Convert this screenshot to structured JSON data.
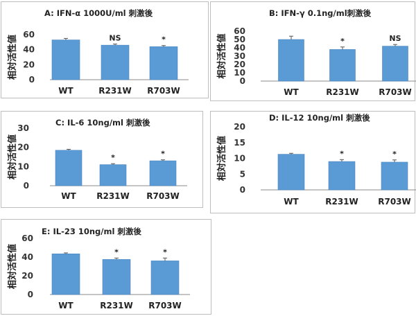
{
  "colors": {
    "bar": "#5b9bd5",
    "bar_edge": "#4a86c0",
    "axis": "#888888",
    "text": "#222222"
  },
  "chart_data": [
    {
      "type": "bar",
      "title": "A:   IFN-α 1000U/ml 刺激後",
      "ylabel": "相対活性値",
      "categories": [
        "WT",
        "R231W",
        "R703W"
      ],
      "values": [
        53,
        46,
        44
      ],
      "errors": [
        2,
        1.5,
        1.5
      ],
      "annotations": [
        "",
        "NS",
        "*"
      ],
      "yticks": [
        0,
        20,
        40,
        60
      ],
      "ylim": [
        0,
        60
      ]
    },
    {
      "type": "bar",
      "title": "B:    IFN-γ 0.1ng/ml刺激後",
      "ylabel": "相対活性値",
      "categories": [
        "WT",
        "R231W",
        "R703W"
      ],
      "values": [
        50,
        38,
        42
      ],
      "errors": [
        4,
        3,
        2
      ],
      "annotations": [
        "",
        "*",
        "NS"
      ],
      "yticks": [
        0,
        10,
        20,
        30,
        40,
        50,
        60
      ],
      "ylim": [
        0,
        60
      ]
    },
    {
      "type": "bar",
      "title": "C:    IL-6 10ng/ml 刺激後",
      "ylabel": "相対活性値",
      "categories": [
        "WT",
        "R231W",
        "R703W"
      ],
      "values": [
        18.5,
        11,
        13
      ],
      "errors": [
        0.5,
        0.5,
        0.5
      ],
      "annotations": [
        "",
        "*",
        "*"
      ],
      "yticks": [
        0,
        10,
        20,
        30
      ],
      "ylim": [
        0,
        30
      ]
    },
    {
      "type": "bar",
      "title": "D:   IL-12 10ng/ml 刺激後",
      "ylabel": "相対活性値",
      "categories": [
        "WT",
        "R231W",
        "R703W"
      ],
      "values": [
        11.3,
        9,
        8.8
      ],
      "errors": [
        0.3,
        0.6,
        0.7
      ],
      "annotations": [
        "",
        "*",
        "*"
      ],
      "yticks": [
        0,
        5,
        10,
        15,
        20
      ],
      "ylim": [
        0,
        20
      ]
    },
    {
      "type": "bar",
      "title": "E:    IL-23 10ng/ml 刺激後",
      "ylabel": "相対活性値",
      "categories": [
        "WT",
        "R231W",
        "R703W"
      ],
      "values": [
        43.5,
        37.5,
        36
      ],
      "errors": [
        1,
        1.5,
        3
      ],
      "annotations": [
        "",
        "*",
        "*"
      ],
      "yticks": [
        0,
        20,
        40,
        60
      ],
      "ylim": [
        0,
        60
      ]
    }
  ]
}
